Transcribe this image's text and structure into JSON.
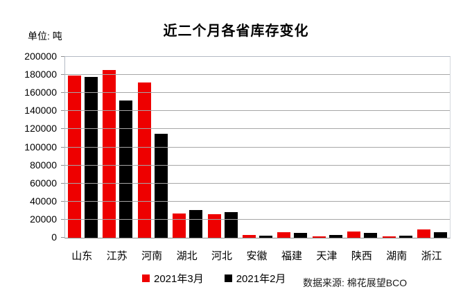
{
  "chart": {
    "title": "近二个月各省库存变化",
    "unit_label": "单位: 吨",
    "source": "数据来源: 棉花展望BCO"
  },
  "chart_data": {
    "type": "bar",
    "title": "近二个月各省库存变化",
    "unit": "吨",
    "categories": [
      "山东",
      "江苏",
      "河南",
      "湖北",
      "河北",
      "安徽",
      "福建",
      "天津",
      "陕西",
      "湖南",
      "浙江"
    ],
    "series": [
      {
        "name": "2021年3月",
        "color": "#ee0000",
        "values": [
          179000,
          185500,
          172000,
          26500,
          26000,
          3000,
          6000,
          1500,
          7000,
          1500,
          9500
        ]
      },
      {
        "name": "2021年2月",
        "color": "#000000",
        "values": [
          177500,
          152000,
          115000,
          31000,
          28000,
          2500,
          5000,
          3000,
          5500,
          2500,
          6500
        ]
      }
    ],
    "xlabel": "",
    "ylabel": "",
    "ylim": [
      0,
      200000
    ],
    "ytick_step": 20000,
    "grid": true,
    "legend_position": "bottom",
    "source": "数据来源: 棉花展望BCO"
  }
}
